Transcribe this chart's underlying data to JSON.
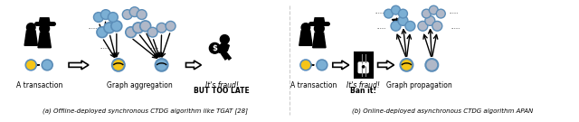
{
  "bg_color": "#ffffff",
  "caption_a": "(a) Offline-deployed synchronous CTDG algorithm like TGAT [28]",
  "caption_b": "(b) Online-deployed asynchronous CTDG algorithm APAN",
  "label_transaction_a": "A transaction",
  "label_graph_agg": "Graph aggregation",
  "label_fraud_a_1": "It's fraud!",
  "label_fraud_a_2": "BUT TOO LATE",
  "label_transaction_b": "A transaction",
  "label_fraud_b_1": "It's fraud!",
  "label_fraud_b_2": "Ban it!",
  "label_graph_prop": "Graph propagation",
  "node_yellow": "#F5C518",
  "node_blue_light": "#7BAFD4",
  "node_gray": "#B0B8C8",
  "node_outline": "#5B8DB8",
  "arrow_color": "#222222",
  "figsize": [
    6.4,
    1.35
  ],
  "dpi": 100
}
